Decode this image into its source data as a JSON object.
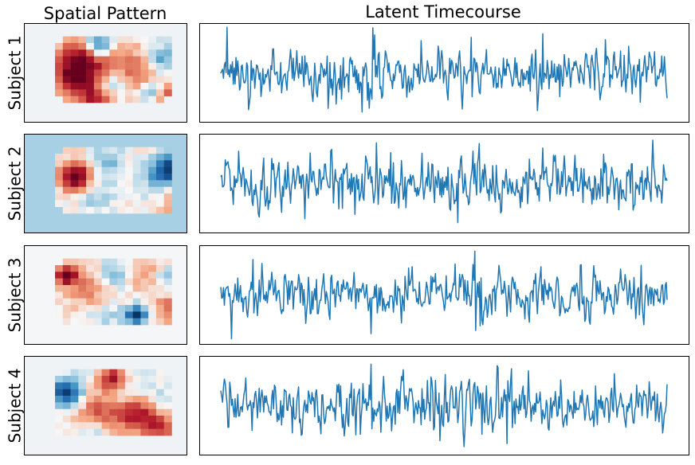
{
  "figure": {
    "col_titles": [
      "Spatial Pattern",
      "Latent Timecourse"
    ],
    "colors": {
      "line": "#1f77b4",
      "frame": "#000000"
    }
  },
  "chart_data": [
    {
      "type": "heatmap",
      "title": "Spatial Pattern",
      "colormap": "RdBu_r",
      "grid": false,
      "subjects": [
        {
          "label": "Subject 1",
          "background": "#eff3f6",
          "blobs": [
            {
              "cx": 3,
              "cy": 3,
              "r": 2.2,
              "v": 0.95
            },
            {
              "cx": 2,
              "cy": 6,
              "r": 1.8,
              "v": 0.7
            },
            {
              "cx": 5,
              "cy": 1,
              "r": 1.2,
              "v": -0.9
            },
            {
              "cx": 9,
              "cy": 4,
              "r": 2.5,
              "v": 0.35
            },
            {
              "cx": 7,
              "cy": 7,
              "r": 1.6,
              "v": -0.55
            },
            {
              "cx": 13,
              "cy": 3,
              "r": 1.5,
              "v": -0.45
            },
            {
              "cx": 15,
              "cy": 9,
              "r": 1.8,
              "v": 0.8
            },
            {
              "cx": 12,
              "cy": 8,
              "r": 1.3,
              "v": -0.5
            },
            {
              "cx": 5,
              "cy": 9,
              "r": 1.8,
              "v": 0.75
            },
            {
              "cx": 18,
              "cy": 5,
              "r": 1.0,
              "v": 0.9
            },
            {
              "cx": 10,
              "cy": 6,
              "r": 2.0,
              "v": 0.25
            }
          ]
        },
        {
          "label": "Subject 2",
          "background": "#a7d0e4",
          "blobs": [
            {
              "cx": 2,
              "cy": 4,
              "r": 1.4,
              "v": 0.95
            },
            {
              "cx": 3,
              "cy": 3,
              "r": 2.0,
              "v": 0.2
            },
            {
              "cx": 14,
              "cy": 3,
              "r": 1.5,
              "v": -1.0
            },
            {
              "cx": 9,
              "cy": 4,
              "r": 3.5,
              "v": 0.08
            },
            {
              "cx": 5,
              "cy": 7,
              "r": 1.6,
              "v": -0.25
            },
            {
              "cx": 16,
              "cy": 7,
              "r": 2.0,
              "v": 0.45
            },
            {
              "cx": 12,
              "cy": 5,
              "r": 2.0,
              "v": -0.2
            },
            {
              "cx": 6,
              "cy": 2,
              "r": 1.8,
              "v": -0.4
            },
            {
              "cx": 17,
              "cy": 5,
              "r": 1.2,
              "v": 0.3
            }
          ]
        },
        {
          "label": "Subject 3",
          "background": "#f4f6f8",
          "blobs": [
            {
              "cx": 1,
              "cy": 2,
              "r": 1.0,
              "v": 1.0
            },
            {
              "cx": 4,
              "cy": 4,
              "r": 2.4,
              "v": 0.35
            },
            {
              "cx": 7,
              "cy": 2,
              "r": 1.5,
              "v": -0.4
            },
            {
              "cx": 11,
              "cy": 2,
              "r": 1.8,
              "v": 0.3
            },
            {
              "cx": 14,
              "cy": 3,
              "r": 1.6,
              "v": -0.3
            },
            {
              "cx": 15,
              "cy": 7,
              "r": 2.0,
              "v": 0.5
            },
            {
              "cx": 10,
              "cy": 8,
              "r": 1.0,
              "v": -0.95
            },
            {
              "cx": 6,
              "cy": 8,
              "r": 1.8,
              "v": -0.2
            },
            {
              "cx": 17,
              "cy": 4,
              "r": 1.2,
              "v": -0.2
            }
          ]
        },
        {
          "label": "Subject 4",
          "background": "#eff3f6",
          "blobs": [
            {
              "cx": 1,
              "cy": 3,
              "r": 1.5,
              "v": -0.9
            },
            {
              "cx": 7,
              "cy": 1,
              "r": 1.2,
              "v": 0.85
            },
            {
              "cx": 5,
              "cy": 6,
              "r": 2.2,
              "v": 0.5
            },
            {
              "cx": 10,
              "cy": 6,
              "r": 2.0,
              "v": 0.75
            },
            {
              "cx": 14,
              "cy": 5,
              "r": 1.6,
              "v": -0.5
            },
            {
              "cx": 16,
              "cy": 5,
              "r": 1.4,
              "v": 0.85
            },
            {
              "cx": 18,
              "cy": 4,
              "r": 0.9,
              "v": -0.9
            },
            {
              "cx": 9,
              "cy": 3,
              "r": 1.8,
              "v": -0.3
            },
            {
              "cx": 4,
              "cy": 9,
              "r": 1.6,
              "v": -0.3
            },
            {
              "cx": 13,
              "cy": 8,
              "r": 1.6,
              "v": 0.6
            }
          ]
        }
      ]
    },
    {
      "type": "line",
      "title": "Latent Timecourse",
      "xlabel": "",
      "ylabel": "",
      "grid": false,
      "n_points": 500,
      "series": [
        {
          "subject": "Subject 1",
          "ylim": [
            -4.2,
            4.2
          ],
          "seed": 11,
          "peaks": [
            [
              170,
              3.8
            ],
            [
              172,
              3.2
            ],
            [
              158,
              -3.3
            ],
            [
              280,
              3.0
            ],
            [
              360,
              3.3
            ],
            [
              120,
              -3.0
            ],
            [
              430,
              2.8
            ]
          ]
        },
        {
          "subject": "Subject 2",
          "ylim": [
            -4.2,
            4.2
          ],
          "seed": 23,
          "peaks": [
            [
              265,
              3.6
            ],
            [
              150,
              -2.6
            ],
            [
              360,
              3.0
            ],
            [
              265,
              -3.3
            ],
            [
              5,
              2.0
            ],
            [
              190,
              2.6
            ]
          ]
        },
        {
          "subject": "Subject 3",
          "ylim": [
            -4.2,
            4.2
          ],
          "seed": 37,
          "peaks": [
            [
              284,
              3.7
            ],
            [
              12,
              -3.7
            ],
            [
              36,
              3.0
            ],
            [
              470,
              2.5
            ],
            [
              285,
              -3.0
            ],
            [
              290,
              -2.6
            ]
          ]
        },
        {
          "subject": "Subject 4",
          "ylim": [
            -4.2,
            4.2
          ],
          "seed": 41,
          "peaks": [
            [
              168,
              3.5
            ],
            [
              310,
              3.2
            ],
            [
              320,
              -3.2
            ],
            [
              80,
              -2.3
            ],
            [
              440,
              2.7
            ],
            [
              90,
              -2.5
            ],
            [
              499,
              1.8
            ]
          ]
        }
      ]
    }
  ]
}
